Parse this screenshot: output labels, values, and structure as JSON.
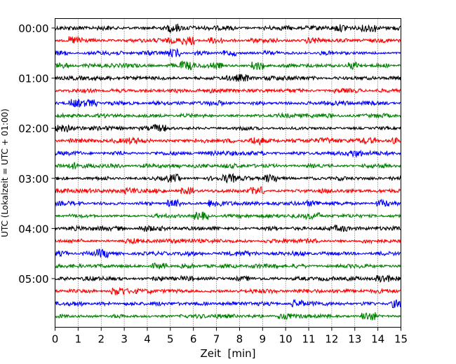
{
  "chart_data": {
    "type": "line",
    "title": "",
    "xlabel": "Zeit  [min]",
    "ylabel": "UTC (Lokalzeit = UTC + 01:00)",
    "xlim": [
      0,
      15
    ],
    "x_ticks": [
      "0",
      "1",
      "2",
      "3",
      "4",
      "5",
      "6",
      "7",
      "8",
      "9",
      "10",
      "11",
      "12",
      "13",
      "14",
      "15"
    ],
    "y_tick_labels": [
      "00:00",
      "01:00",
      "02:00",
      "03:00",
      "04:00",
      "05:00"
    ],
    "grid": "vertical dotted lines at each minute",
    "trace_interval_minutes": 15,
    "trace_colors": [
      "#000000",
      "#ff0000",
      "#0000ff",
      "#008000"
    ],
    "series": [
      {
        "start": "00:00",
        "color": "#000000"
      },
      {
        "start": "00:15",
        "color": "#ff0000"
      },
      {
        "start": "00:30",
        "color": "#0000ff"
      },
      {
        "start": "00:45",
        "color": "#008000"
      },
      {
        "start": "01:00",
        "color": "#000000"
      },
      {
        "start": "01:15",
        "color": "#ff0000"
      },
      {
        "start": "01:30",
        "color": "#0000ff"
      },
      {
        "start": "01:45",
        "color": "#008000"
      },
      {
        "start": "02:00",
        "color": "#000000"
      },
      {
        "start": "02:15",
        "color": "#ff0000"
      },
      {
        "start": "02:30",
        "color": "#0000ff"
      },
      {
        "start": "02:45",
        "color": "#008000"
      },
      {
        "start": "03:00",
        "color": "#000000"
      },
      {
        "start": "03:15",
        "color": "#ff0000"
      },
      {
        "start": "03:30",
        "color": "#0000ff"
      },
      {
        "start": "03:45",
        "color": "#008000"
      },
      {
        "start": "04:00",
        "color": "#000000"
      },
      {
        "start": "04:15",
        "color": "#ff0000"
      },
      {
        "start": "04:30",
        "color": "#0000ff"
      },
      {
        "start": "04:45",
        "color": "#008000"
      },
      {
        "start": "05:00",
        "color": "#000000"
      },
      {
        "start": "05:15",
        "color": "#ff0000"
      },
      {
        "start": "05:30",
        "color": "#0000ff"
      },
      {
        "start": "05:45",
        "color": "#008000"
      }
    ]
  }
}
